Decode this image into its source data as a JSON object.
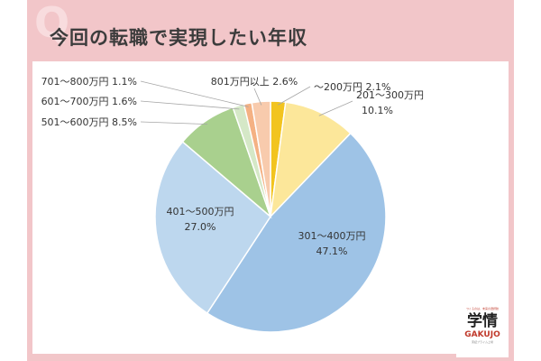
{
  "header": {
    "title": "今回の転職で実現したい年収",
    "badge_letter": "Q"
  },
  "logo": {
    "tagline": "つくるのは、未来の選択肢",
    "mark": "学情",
    "brand": "GAKUJO",
    "sub": "東証プライム上場"
  },
  "chart_data": {
    "type": "pie",
    "title": "今回の転職で実現したい年収",
    "series": [
      {
        "label": "～200万円",
        "value": 2.1,
        "display": "2.1%",
        "color": "#f2c41f"
      },
      {
        "label": "201～300万円",
        "value": 10.1,
        "display": "10.1%",
        "color": "#fce79a"
      },
      {
        "label": "301～400万円",
        "value": 47.1,
        "display": "47.1%",
        "color": "#9ec3e6"
      },
      {
        "label": "401～500万円",
        "value": 27.0,
        "display": "27.0%",
        "color": "#bdd7ee"
      },
      {
        "label": "501～600万円",
        "value": 8.5,
        "display": "8.5%",
        "color": "#a9d08e"
      },
      {
        "label": "601～700万円",
        "value": 1.6,
        "display": "1.6%",
        "color": "#d5e8c7"
      },
      {
        "label": "701～800万円",
        "value": 1.1,
        "display": "1.1%",
        "color": "#f4b183"
      },
      {
        "label": "801万円以上",
        "value": 2.6,
        "display": "2.6%",
        "color": "#f8cbad"
      }
    ]
  }
}
